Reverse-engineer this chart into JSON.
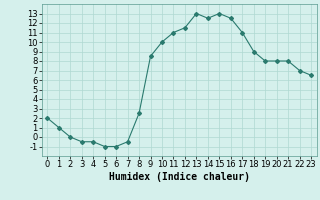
{
  "x": [
    0,
    1,
    2,
    3,
    4,
    5,
    6,
    7,
    8,
    9,
    10,
    11,
    12,
    13,
    14,
    15,
    16,
    17,
    18,
    19,
    20,
    21,
    22,
    23
  ],
  "y": [
    2,
    1,
    0,
    -0.5,
    -0.5,
    -1,
    -1,
    -0.5,
    2.5,
    8.5,
    10,
    11,
    11.5,
    13,
    12.5,
    13,
    12.5,
    11,
    9,
    8,
    8,
    8,
    7,
    6.5
  ],
  "line_color": "#2a7a6e",
  "marker": "D",
  "marker_size": 2,
  "bg_color": "#d5f0ec",
  "grid_color": "#afd8d2",
  "xlabel": "Humidex (Indice chaleur)",
  "xlabel_fontsize": 7,
  "tick_fontsize": 6,
  "xlim": [
    -0.5,
    23.5
  ],
  "ylim": [
    -2,
    14
  ],
  "yticks": [
    -1,
    0,
    1,
    2,
    3,
    4,
    5,
    6,
    7,
    8,
    9,
    10,
    11,
    12,
    13
  ],
  "xticks": [
    0,
    1,
    2,
    3,
    4,
    5,
    6,
    7,
    8,
    9,
    10,
    11,
    12,
    13,
    14,
    15,
    16,
    17,
    18,
    19,
    20,
    21,
    22,
    23
  ]
}
